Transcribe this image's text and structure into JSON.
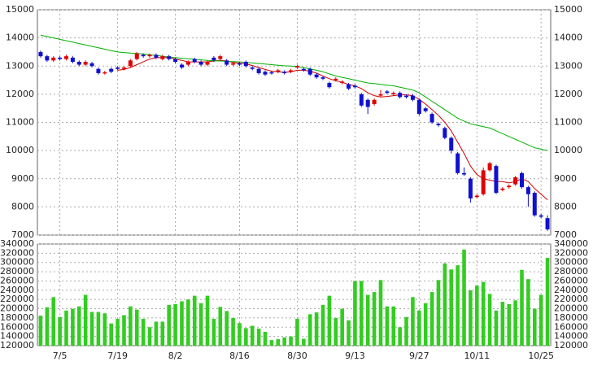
{
  "chart_data": [
    {
      "type": "candlestick",
      "categories": [
        null,
        null,
        null,
        "7/5",
        null,
        null,
        null,
        null,
        null,
        null,
        null,
        null,
        "7/19",
        null,
        null,
        null,
        null,
        null,
        null,
        null,
        null,
        "8/2",
        null,
        null,
        null,
        null,
        null,
        null,
        null,
        null,
        null,
        "8/16",
        null,
        null,
        null,
        null,
        null,
        null,
        null,
        null,
        "8/30",
        null,
        null,
        null,
        null,
        null,
        null,
        null,
        null,
        "9/13",
        null,
        null,
        null,
        null,
        null,
        null,
        null,
        null,
        null,
        "9/27",
        null,
        null,
        null,
        null,
        null,
        null,
        null,
        null,
        "10/11",
        null,
        null,
        null,
        null,
        null,
        null,
        null,
        null,
        null,
        "10/25",
        null
      ],
      "open": [
        13500,
        13350,
        13200,
        13300,
        13250,
        13300,
        13150,
        13050,
        13100,
        12900,
        12750,
        12900,
        12950,
        12900,
        13000,
        13250,
        13400,
        13350,
        13400,
        13250,
        13350,
        13250,
        13050,
        13050,
        13250,
        13150,
        13050,
        13300,
        13250,
        13200,
        13050,
        13100,
        13150,
        12950,
        12900,
        12800,
        12780,
        12800,
        12800,
        12800,
        12950,
        12900,
        12900,
        12700,
        12600,
        12400,
        12500,
        12400,
        12350,
        12300,
        12000,
        11800,
        11650,
        11950,
        12100,
        12000,
        12050,
        11950,
        11950,
        11800,
        11500,
        11300,
        10950,
        10800,
        10450,
        9900,
        9200,
        9000,
        8350,
        8450,
        9300,
        9450,
        8600,
        8700,
        8800,
        9200,
        8700,
        8500,
        7700,
        7600
      ],
      "high": [
        13550,
        13400,
        13350,
        13350,
        13400,
        13350,
        13200,
        13200,
        13150,
        12950,
        12830,
        12950,
        13000,
        13000,
        13250,
        13500,
        13450,
        13450,
        13450,
        13400,
        13400,
        13300,
        13100,
        13200,
        13300,
        13200,
        13200,
        13350,
        13400,
        13250,
        13150,
        13150,
        13200,
        13000,
        12950,
        12850,
        12830,
        12900,
        12850,
        12900,
        13050,
        12950,
        12950,
        12750,
        12650,
        12450,
        12600,
        12500,
        12400,
        12350,
        12050,
        11850,
        11850,
        12150,
        12150,
        12100,
        12100,
        12000,
        12000,
        11850,
        11550,
        11350,
        11000,
        10850,
        10500,
        9950,
        9400,
        9050,
        8450,
        9400,
        9600,
        9500,
        8700,
        8800,
        9100,
        9250,
        8750,
        8550,
        7750,
        7700
      ],
      "low": [
        13300,
        13150,
        13150,
        13200,
        13200,
        13100,
        13000,
        13000,
        12950,
        12700,
        12700,
        12750,
        12850,
        12850,
        12950,
        13200,
        13300,
        13300,
        13250,
        13200,
        13200,
        13100,
        12900,
        13000,
        13100,
        13000,
        13000,
        13150,
        13200,
        13000,
        13000,
        13000,
        12950,
        12850,
        12700,
        12650,
        12700,
        12750,
        12700,
        12750,
        12900,
        12800,
        12650,
        12550,
        12500,
        12200,
        12450,
        12350,
        12150,
        12200,
        11550,
        11300,
        11600,
        11900,
        12000,
        11950,
        11850,
        11850,
        11750,
        11250,
        11350,
        10950,
        10850,
        10400,
        9900,
        9150,
        9100,
        8150,
        8300,
        8400,
        9250,
        8450,
        8550,
        8650,
        8750,
        8650,
        8000,
        7650,
        7600,
        7150
      ],
      "close": [
        13350,
        13200,
        13300,
        13250,
        13350,
        13150,
        13050,
        13150,
        13000,
        12750,
        12780,
        12800,
        12900,
        12950,
        13200,
        13450,
        13350,
        13400,
        13300,
        13350,
        13250,
        13150,
        12950,
        13150,
        13150,
        13050,
        13150,
        13200,
        13350,
        13050,
        13100,
        13050,
        13000,
        12900,
        12750,
        12700,
        12750,
        12850,
        12750,
        12850,
        13000,
        12850,
        12700,
        12600,
        12550,
        12250,
        12550,
        12450,
        12200,
        12250,
        11600,
        11550,
        11800,
        12000,
        12050,
        12050,
        11900,
        11900,
        11800,
        11300,
        11400,
        11000,
        10900,
        10450,
        10000,
        9200,
        9150,
        8300,
        8400,
        9300,
        9550,
        8500,
        8650,
        8750,
        9050,
        8700,
        8450,
        7700,
        7650,
        7200
      ],
      "up_color": "#e00000",
      "down_color": "#1010d0",
      "lines": [
        {
          "color": "#d00000",
          "values": [
            null,
            null,
            null,
            null,
            null,
            null,
            null,
            null,
            null,
            null,
            null,
            null,
            12850,
            12880,
            12950,
            13050,
            13150,
            13250,
            13300,
            13300,
            13300,
            13250,
            13200,
            13150,
            13150,
            13150,
            13150,
            13180,
            13200,
            13180,
            13130,
            13100,
            13080,
            13020,
            12950,
            12880,
            12820,
            12800,
            12780,
            12800,
            12850,
            12850,
            12820,
            12750,
            12650,
            12550,
            12480,
            12420,
            12350,
            12300,
            12200,
            12050,
            11950,
            11900,
            11920,
            11950,
            11980,
            11980,
            11950,
            11820,
            11650,
            11450,
            11250,
            11000,
            10700,
            10300,
            9900,
            9450,
            9150,
            9000,
            8950,
            8900,
            8900,
            8850,
            8900,
            9000,
            8900,
            8650,
            8450,
            8250
          ]
        },
        {
          "color": "#00b000",
          "values": [
            14100,
            14050,
            14000,
            13950,
            13900,
            13850,
            13800,
            13750,
            13700,
            13650,
            13600,
            13550,
            13500,
            13480,
            13460,
            13450,
            13430,
            13400,
            13380,
            13350,
            13320,
            13300,
            13280,
            13260,
            13240,
            13220,
            13200,
            13190,
            13180,
            13170,
            13160,
            13150,
            13130,
            13110,
            13090,
            13070,
            13050,
            13030,
            13010,
            13000,
            12980,
            12950,
            12900,
            12850,
            12800,
            12720,
            12650,
            12600,
            12550,
            12500,
            12450,
            12400,
            12380,
            12350,
            12320,
            12300,
            12250,
            12200,
            12150,
            12050,
            11900,
            11750,
            11600,
            11450,
            11300,
            11150,
            11050,
            10950,
            10900,
            10850,
            10800,
            10700,
            10600,
            10500,
            10400,
            10300,
            10200,
            10100,
            10050,
            10000
          ]
        }
      ],
      "ylim": [
        7000,
        15000
      ],
      "yticks": [
        7000,
        8000,
        9000,
        10000,
        11000,
        12000,
        13000,
        14000,
        15000
      ],
      "grid": true
    },
    {
      "type": "bar",
      "values": [
        185000,
        203000,
        225000,
        182000,
        196000,
        200000,
        205000,
        230000,
        193000,
        193000,
        190000,
        168000,
        178000,
        186000,
        205000,
        198000,
        178000,
        160000,
        172000,
        172000,
        208000,
        210000,
        216000,
        220000,
        228000,
        212000,
        228000,
        178000,
        204000,
        195000,
        180000,
        169000,
        158000,
        163000,
        157000,
        150000,
        132000,
        134000,
        138000,
        140000,
        178000,
        135000,
        188000,
        192000,
        208000,
        228000,
        180000,
        200000,
        175000,
        260000,
        260000,
        230000,
        236000,
        262000,
        205000,
        205000,
        160000,
        182000,
        225000,
        196000,
        212000,
        236000,
        262000,
        298000,
        285000,
        294000,
        328000,
        240000,
        250000,
        258000,
        232000,
        196000,
        215000,
        210000,
        218000,
        284000,
        264000,
        200000,
        230000,
        310000
      ],
      "color": "#33cc22",
      "ylim": [
        120000,
        340000
      ],
      "yticks": [
        120000,
        140000,
        160000,
        180000,
        200000,
        220000,
        240000,
        260000,
        280000,
        300000,
        320000,
        340000
      ],
      "grid": true
    }
  ]
}
